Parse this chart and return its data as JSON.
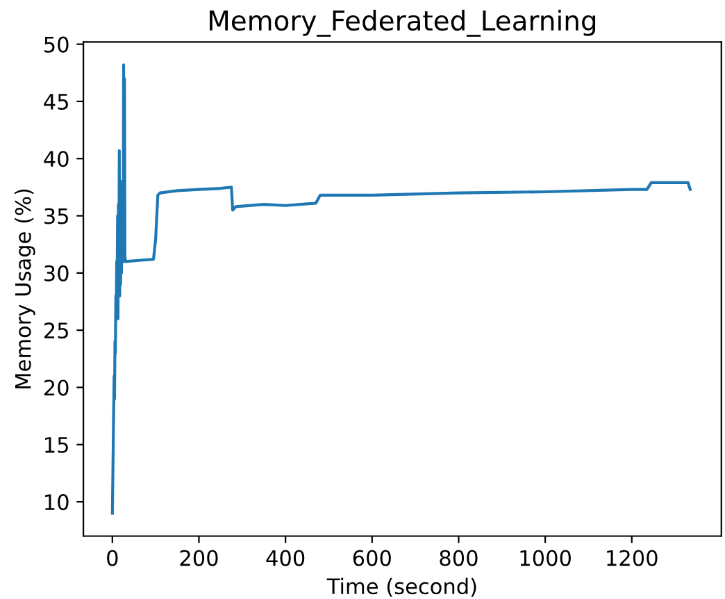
{
  "chart_data": {
    "type": "line",
    "title": "Memory_Federated_Learning",
    "xlabel": "Time (second)",
    "ylabel": "Memory Usage (%)",
    "x": [
      0,
      2,
      4,
      5,
      6,
      7,
      8,
      9,
      10,
      11,
      12,
      13,
      14,
      15,
      16,
      17,
      18,
      19,
      20,
      21,
      22,
      23,
      24,
      25,
      26,
      27,
      28,
      29,
      30,
      60,
      95,
      100,
      105,
      110,
      150,
      200,
      250,
      275,
      278,
      285,
      350,
      400,
      470,
      480,
      600,
      800,
      1000,
      1200,
      1235,
      1245,
      1330,
      1335
    ],
    "series": [
      {
        "color": "#1f77b4",
        "values": [
          9,
          15,
          21,
          19,
          24,
          23,
          28,
          27,
          31,
          29,
          35,
          26,
          36,
          30,
          40.7,
          28,
          36,
          29,
          38,
          30,
          36,
          31,
          34,
          31,
          48.2,
          31,
          47,
          31.5,
          31,
          31.1,
          31.2,
          33,
          36.8,
          37,
          37.2,
          37.3,
          37.4,
          37.5,
          35.5,
          35.8,
          36,
          35.9,
          36.1,
          36.8,
          36.8,
          37,
          37.1,
          37.3,
          37.3,
          37.9,
          37.9,
          37.3
        ]
      }
    ],
    "xlim": [
      -67,
      1407
    ],
    "ylim": [
      7.0,
      50.2
    ],
    "xticks": [
      0,
      200,
      400,
      600,
      800,
      1000,
      1200
    ],
    "yticks": [
      10,
      15,
      20,
      25,
      30,
      35,
      40,
      45,
      50
    ],
    "grid": false
  }
}
